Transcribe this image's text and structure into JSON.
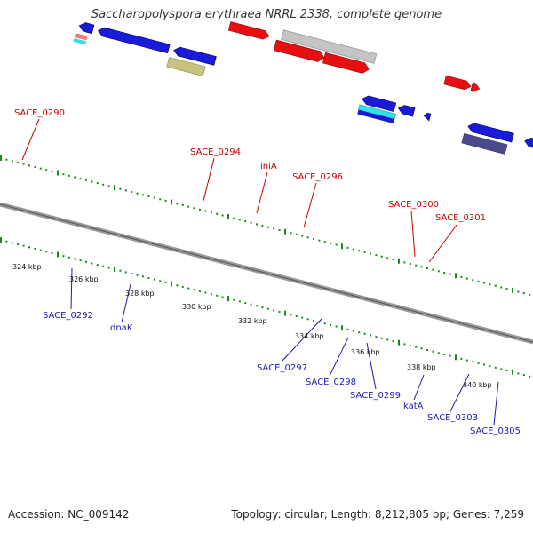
{
  "header": {
    "title": "Saccharopolyspora erythraea NRRL 2338, complete genome"
  },
  "footer": {
    "accession": "Accession: NC_009142",
    "summary": "Topology: circular; Length: 8,212,805 bp; Genes: 7,259"
  },
  "colors": {
    "forward_gene": "#e61010",
    "reverse_gene": "#1a1ad9",
    "grey_gene": "#c4c4c4",
    "slate_gene": "#7b7be0",
    "khaki_gene": "#c7c182",
    "cyan_gene": "#33e0e6",
    "darkslate_gene": "#4a4a8c",
    "salmon_gene": "#f08070",
    "backbone": "#888888",
    "tick": "#1a8a1a"
  },
  "map": {
    "kbp_labels": [
      "324 kbp",
      "326 kbp",
      "328 kbp",
      "330 kbp",
      "332 kbp",
      "334 kbp",
      "336 kbp",
      "338 kbp",
      "340 kbp"
    ],
    "forward_genes": [
      "SACE_0290",
      "SACE_0294",
      "iniA",
      "SACE_0296",
      "SACE_0300",
      "SACE_0301"
    ],
    "reverse_genes": [
      "SACE_0292",
      "dnaK",
      "SACE_0297",
      "SACE_0298",
      "SACE_0299",
      "katA",
      "SACE_0303",
      "SACE_0305"
    ]
  }
}
